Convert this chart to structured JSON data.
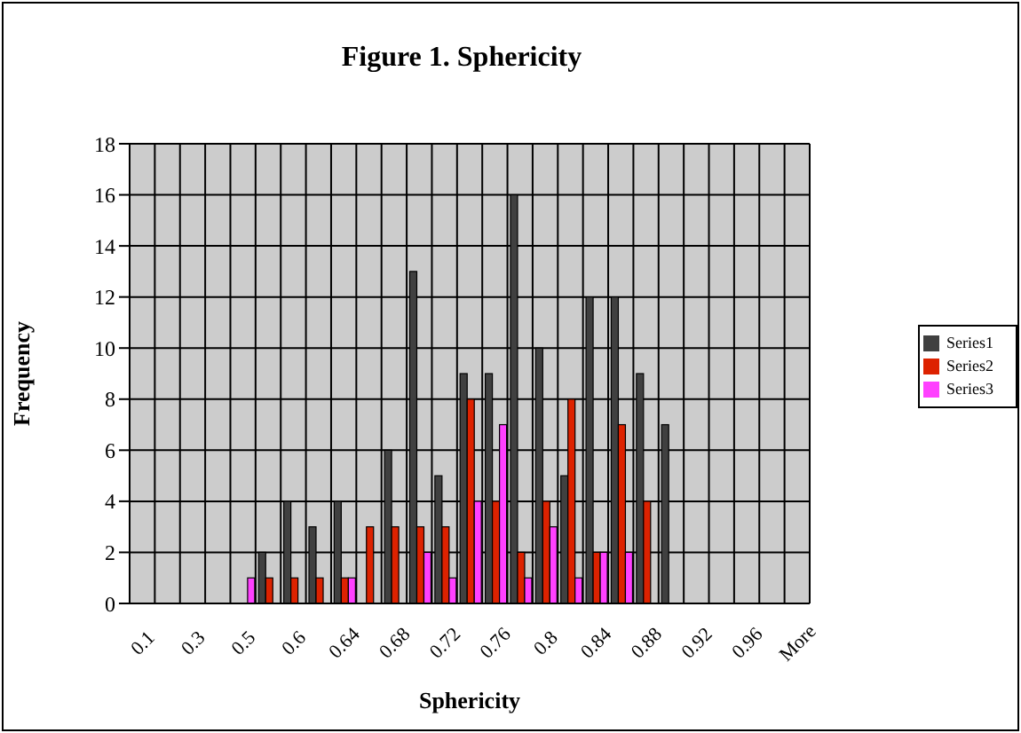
{
  "chart_data": {
    "type": "bar",
    "title": "Figure 1. Sphericity",
    "xlabel": "Sphericity",
    "ylabel": "Frequency",
    "categories": [
      "0.1",
      null,
      "0.3",
      null,
      "0.5",
      null,
      "0.6",
      null,
      "0.64",
      null,
      "0.68",
      null,
      "0.72",
      null,
      "0.76",
      null,
      "0.8",
      null,
      "0.84",
      null,
      "0.88",
      null,
      "0.92",
      null,
      "0.96",
      null,
      "More"
    ],
    "series": [
      {
        "name": "Series1",
        "color": "#404040",
        "values": [
          0,
          0,
          0,
          0,
          0,
          2,
          4,
          3,
          4,
          0,
          6,
          13,
          5,
          9,
          9,
          16,
          10,
          5,
          12,
          12,
          9,
          7,
          0,
          0,
          0,
          0,
          0
        ]
      },
      {
        "name": "Series2",
        "color": "#dd2200",
        "values": [
          0,
          0,
          0,
          0,
          0,
          1,
          1,
          1,
          1,
          3,
          3,
          3,
          3,
          8,
          4,
          2,
          4,
          8,
          2,
          7,
          4,
          0,
          0,
          0,
          0,
          0,
          0
        ]
      },
      {
        "name": "Series3",
        "color": "#ff40ff",
        "values": [
          0,
          0,
          0,
          0,
          1,
          0,
          0,
          0,
          1,
          0,
          0,
          2,
          1,
          4,
          7,
          1,
          3,
          1,
          2,
          2,
          0,
          0,
          0,
          0,
          0,
          0,
          0
        ]
      }
    ],
    "ylim": [
      0,
      18
    ],
    "yticks": [
      0,
      2,
      4,
      6,
      8,
      10,
      12,
      14,
      16,
      18
    ],
    "grid": true,
    "legend": "right"
  }
}
